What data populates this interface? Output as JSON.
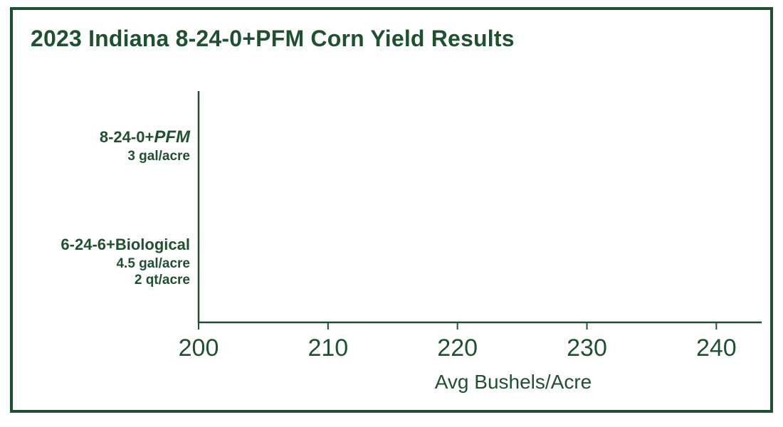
{
  "colors": {
    "primary": "#1f5130",
    "background": "#ffffff"
  },
  "chart_data": {
    "type": "bar",
    "orientation": "horizontal",
    "title": "2023 Indiana 8-24-0+PFM Corn Yield Results",
    "xlabel": "Avg Bushels/Acre",
    "ylabel": "",
    "xlim": [
      200,
      243.5
    ],
    "x_ticks": [
      "200",
      "210",
      "220",
      "230",
      "240"
    ],
    "grid": false,
    "categories": [
      {
        "lines": [
          {
            "text": "8-24-0+",
            "italic_suffix": "PFM"
          },
          {
            "text": "3 gal/acre"
          }
        ]
      },
      {
        "lines": [
          {
            "text": "6-24-6+Biological"
          },
          {
            "text": "4.5 gal/acre"
          },
          {
            "text": "2 qt/acre"
          }
        ]
      }
    ],
    "values": [
      null,
      null
    ]
  }
}
